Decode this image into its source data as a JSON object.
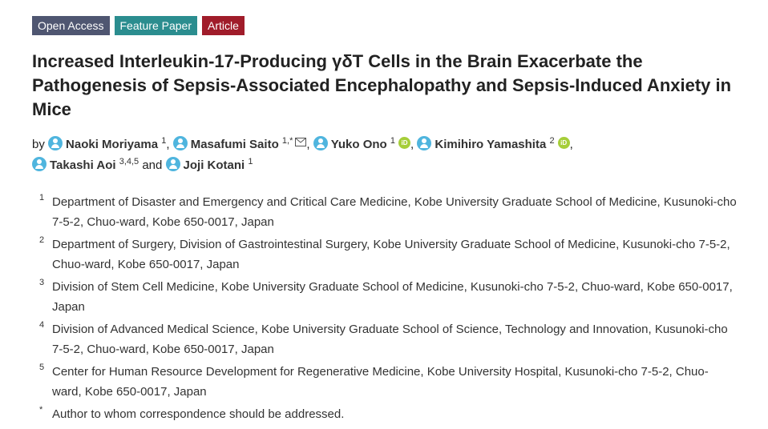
{
  "badges": {
    "open_access": "Open Access",
    "feature_paper": "Feature Paper",
    "article": "Article"
  },
  "title": "Increased Interleukin-17-Producing γδT Cells in the Brain Exacerbate the Pathogenesis of Sepsis-Associated Encephalopathy and Sepsis-Induced Anxiety in Mice",
  "byline": {
    "prefix": "by",
    "and": "and",
    "authors": [
      {
        "name": "Naoki Moriyama",
        "sup": "1",
        "orcid": false,
        "email": false
      },
      {
        "name": "Masafumi Saito",
        "sup": "1,*",
        "orcid": false,
        "email": true
      },
      {
        "name": "Yuko Ono",
        "sup": "1",
        "orcid": true,
        "email": false
      },
      {
        "name": "Kimihiro Yamashita",
        "sup": "2",
        "orcid": true,
        "email": false
      },
      {
        "name": "Takashi Aoi",
        "sup": "3,4,5",
        "orcid": false,
        "email": false
      },
      {
        "name": "Joji Kotani",
        "sup": "1",
        "orcid": false,
        "email": false
      }
    ]
  },
  "orcid_label": "iD",
  "affiliations": [
    {
      "num": "1",
      "text": "Department of Disaster and Emergency and Critical Care Medicine, Kobe University Graduate School of Medicine, Kusunoki-cho 7-5-2, Chuo-ward, Kobe 650-0017, Japan"
    },
    {
      "num": "2",
      "text": "Department of Surgery, Division of Gastrointestinal Surgery, Kobe University Graduate School of Medicine, Kusunoki-cho 7-5-2, Chuo-ward, Kobe 650-0017, Japan"
    },
    {
      "num": "3",
      "text": "Division of Stem Cell Medicine, Kobe University Graduate School of Medicine, Kusunoki-cho 7-5-2, Chuo-ward, Kobe 650-0017, Japan"
    },
    {
      "num": "4",
      "text": "Division of Advanced Medical Science, Kobe University Graduate School of Science, Technology and Innovation, Kusunoki-cho 7-5-2, Chuo-ward, Kobe 650-0017, Japan"
    },
    {
      "num": "5",
      "text": "Center for Human Resource Development for Regenerative Medicine, Kobe University Hospital, Kusunoki-cho 7-5-2, Chuo-ward, Kobe 650-0017, Japan"
    },
    {
      "num": "*",
      "text": "Author to whom correspondence should be addressed."
    }
  ]
}
